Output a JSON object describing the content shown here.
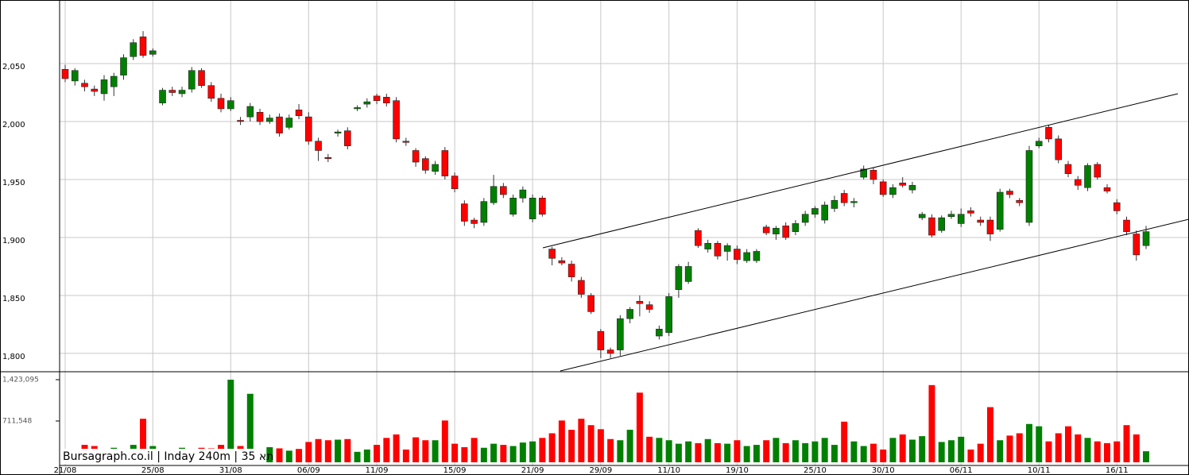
{
  "chart_data": {
    "type": "candlestick",
    "source_label": "Bursagraph.co.il | Inday 240m | 35 תא",
    "categories": [
      "21/08",
      null,
      null,
      null,
      null,
      null,
      null,
      null,
      null,
      "25/08",
      null,
      null,
      null,
      null,
      null,
      null,
      null,
      "31/08",
      null,
      null,
      null,
      null,
      null,
      null,
      null,
      "06/09",
      null,
      null,
      null,
      null,
      null,
      null,
      "11/09",
      null,
      null,
      null,
      null,
      null,
      null,
      null,
      "15/09",
      null,
      null,
      null,
      null,
      null,
      null,
      null,
      "21/09",
      null,
      null,
      null,
      null,
      null,
      null,
      "29/09",
      null,
      null,
      null,
      null,
      null,
      null,
      "11/10",
      null,
      null,
      null,
      null,
      null,
      null,
      "19/10",
      null,
      null,
      null,
      null,
      null,
      null,
      null,
      "25/10",
      null,
      null,
      null,
      null,
      null,
      null,
      "30/10",
      null,
      null,
      null,
      null,
      null,
      null,
      null,
      "06/11",
      null,
      null,
      null,
      null,
      null,
      null,
      null,
      "10/11",
      null,
      null,
      null,
      null,
      null,
      null,
      null,
      "16/11",
      null,
      null,
      null
    ],
    "open": [
      2045,
      2035,
      2033,
      2028,
      2024,
      2030,
      2040,
      2056,
      2073,
      2058,
      2016,
      2027,
      2024,
      2028,
      2044,
      2031,
      2020,
      2011,
      2001,
      2004,
      2008,
      2000,
      2004,
      1995,
      2010,
      2004,
      1983,
      1969,
      1990,
      1992,
      2011,
      2015,
      2022,
      2021,
      2018,
      1983,
      1975,
      1968,
      1957,
      1975,
      1953,
      1929,
      1915,
      1913,
      1930,
      1944,
      1920,
      1934,
      1916,
      1934,
      1890,
      1880,
      1877,
      1863,
      1850,
      1819,
      1803,
      1803,
      1830,
      1845,
      1842,
      1815,
      1818,
      1855,
      1862,
      1906,
      1890,
      1895,
      1888,
      1890,
      1880,
      1880,
      1909,
      1903,
      1910,
      1905,
      1913,
      1920,
      1915,
      1925,
      1938,
      1930,
      1952,
      1958,
      1948,
      1937,
      1947,
      1941,
      1917,
      1917,
      1906,
      1918,
      1912,
      1923,
      1915,
      1915,
      1907,
      1940,
      1932,
      1913,
      1979,
      1995,
      1985,
      1963,
      1950,
      1943,
      1963,
      1943,
      1930,
      1915,
      1903,
      1893
    ],
    "high": [
      2049,
      2046,
      2036,
      2031,
      2040,
      2042,
      2058,
      2071,
      2078,
      2063,
      2029,
      2030,
      2030,
      2047,
      2046,
      2034,
      2024,
      2021,
      2004,
      2016,
      2011,
      2006,
      2007,
      2006,
      2015,
      2008,
      1986,
      1972,
      1993,
      1995,
      2014,
      2020,
      2024,
      2024,
      2021,
      1986,
      1977,
      1970,
      1966,
      1978,
      1956,
      1932,
      1917,
      1934,
      1954,
      1947,
      1937,
      1944,
      1937,
      1936,
      1892,
      1883,
      1880,
      1866,
      1852,
      1821,
      1805,
      1833,
      1840,
      1850,
      1845,
      1824,
      1852,
      1877,
      1879,
      1908,
      1898,
      1897,
      1895,
      1893,
      1890,
      1890,
      1911,
      1910,
      1913,
      1915,
      1923,
      1927,
      1931,
      1936,
      1941,
      1934,
      1962,
      1960,
      1950,
      1946,
      1952,
      1948,
      1922,
      1920,
      1919,
      1923,
      1925,
      1926,
      1918,
      1918,
      1942,
      1942,
      1934,
      1979,
      1986,
      1997,
      1988,
      1966,
      1953,
      1964,
      1965,
      1946,
      1933,
      1918,
      1906,
      1910
    ],
    "low": [
      2034,
      2031,
      2026,
      2022,
      2018,
      2022,
      2036,
      2053,
      2055,
      2056,
      2014,
      2022,
      2021,
      2025,
      2029,
      2017,
      2008,
      2009,
      1997,
      2000,
      1997,
      1998,
      1987,
      1993,
      2002,
      1980,
      1966,
      1965,
      1987,
      1976,
      2009,
      2012,
      2015,
      2013,
      1982,
      1979,
      1961,
      1955,
      1954,
      1950,
      1939,
      1910,
      1908,
      1910,
      1928,
      1934,
      1918,
      1930,
      1913,
      1918,
      1876,
      1876,
      1862,
      1848,
      1834,
      1796,
      1796,
      1798,
      1826,
      1832,
      1835,
      1812,
      1815,
      1848,
      1860,
      1891,
      1887,
      1881,
      1880,
      1877,
      1878,
      1878,
      1902,
      1898,
      1898,
      1902,
      1910,
      1917,
      1912,
      1922,
      1927,
      1926,
      1950,
      1946,
      1935,
      1934,
      1943,
      1938,
      1915,
      1900,
      1904,
      1916,
      1909,
      1918,
      1910,
      1897,
      1905,
      1934,
      1927,
      1910,
      1977,
      1982,
      1964,
      1952,
      1941,
      1940,
      1950,
      1938,
      1920,
      1902,
      1880,
      1890
    ],
    "close": [
      2037,
      2044,
      2030,
      2026,
      2036,
      2039,
      2055,
      2068,
      2057,
      2061,
      2027,
      2025,
      2027,
      2044,
      2031,
      2020,
      2011,
      2018,
      2000,
      2013,
      2000,
      2003,
      1990,
      2003,
      2005,
      1983,
      1975,
      1968,
      1991,
      1979,
      2012,
      2017,
      2018,
      2016,
      1985,
      1982,
      1965,
      1958,
      1963,
      1953,
      1942,
      1914,
      1912,
      1931,
      1944,
      1937,
      1934,
      1941,
      1934,
      1920,
      1882,
      1878,
      1866,
      1851,
      1836,
      1803,
      1800,
      1830,
      1838,
      1843,
      1838,
      1821,
      1849,
      1875,
      1875,
      1893,
      1895,
      1884,
      1893,
      1881,
      1887,
      1888,
      1904,
      1908,
      1900,
      1912,
      1920,
      1925,
      1928,
      1932,
      1930,
      1931,
      1959,
      1950,
      1937,
      1943,
      1945,
      1945,
      1920,
      1902,
      1917,
      1920,
      1920,
      1921,
      1913,
      1903,
      1939,
      1937,
      1930,
      1975,
      1983,
      1985,
      1967,
      1955,
      1945,
      1962,
      1952,
      1940,
      1923,
      1905,
      1885,
      1905
    ],
    "volume": [
      220000,
      150000,
      300000,
      280000,
      200000,
      250000,
      220000,
      300000,
      750000,
      280000,
      200000,
      180000,
      250000,
      220000,
      250000,
      240000,
      300000,
      1423095,
      280000,
      1180000,
      190000,
      260000,
      240000,
      200000,
      230000,
      350000,
      400000,
      380000,
      390000,
      400000,
      180000,
      220000,
      300000,
      420000,
      480000,
      220000,
      430000,
      380000,
      380000,
      720000,
      320000,
      260000,
      420000,
      250000,
      320000,
      300000,
      280000,
      340000,
      360000,
      420000,
      500000,
      720000,
      560000,
      750000,
      640000,
      570000,
      400000,
      380000,
      560000,
      1200000,
      440000,
      420000,
      380000,
      320000,
      360000,
      330000,
      400000,
      330000,
      320000,
      380000,
      280000,
      300000,
      380000,
      420000,
      330000,
      380000,
      330000,
      360000,
      420000,
      300000,
      700000,
      360000,
      280000,
      320000,
      220000,
      420000,
      480000,
      390000,
      450000,
      1330000,
      350000,
      380000,
      440000,
      220000,
      320000,
      950000,
      380000,
      460000,
      500000,
      660000,
      620000,
      360000,
      500000,
      620000,
      480000,
      420000,
      360000,
      330000,
      360000,
      640000,
      480000,
      190000
    ],
    "ylim": [
      1784.2,
      2104.8
    ],
    "yticks": [
      {
        "value": 1800,
        "label": "1,800"
      },
      {
        "value": 1850,
        "label": "1,850"
      },
      {
        "value": 1900,
        "label": "1,900"
      },
      {
        "value": 1950,
        "label": "1,950"
      },
      {
        "value": 2000,
        "label": "2,000"
      },
      {
        "value": 2050,
        "label": "2,050"
      }
    ],
    "volume_lim": [
      0,
      1560000
    ],
    "volume_ticks": [
      {
        "value": 711548,
        "label": "711,548"
      },
      {
        "value": 1423095,
        "label": "1,423,095"
      }
    ],
    "up_color": "#008000",
    "down_color": "#ff0000",
    "grid": true
  }
}
